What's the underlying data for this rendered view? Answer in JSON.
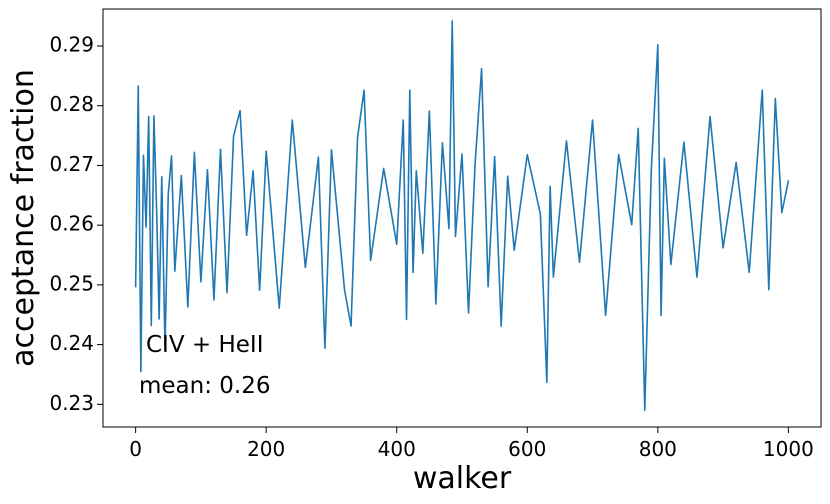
{
  "chart_data": {
    "type": "line",
    "xlabel": "walker",
    "ylabel": "acceptance fraction",
    "xlim": [
      -50,
      1050
    ],
    "ylim": [
      0.2262,
      0.2962
    ],
    "xticks": [
      0,
      200,
      400,
      600,
      800,
      1000
    ],
    "yticks": [
      0.23,
      0.24,
      0.25,
      0.26,
      0.27,
      0.28,
      0.29
    ],
    "xtick_labels": [
      "0",
      "200",
      "400",
      "600",
      "800",
      "1000"
    ],
    "ytick_labels": [
      "0.23",
      "0.24",
      "0.25",
      "0.26",
      "0.27",
      "0.28",
      "0.29"
    ],
    "grid": false,
    "series": [
      {
        "color": "#1f77b4",
        "x": [
          0,
          4,
          8,
          12,
          16,
          20,
          24,
          28,
          32,
          36,
          40,
          45,
          50,
          55,
          60,
          70,
          80,
          90,
          100,
          110,
          120,
          130,
          140,
          150,
          160,
          170,
          180,
          190,
          200,
          220,
          240,
          260,
          280,
          290,
          300,
          320,
          330,
          340,
          350,
          360,
          380,
          400,
          410,
          415,
          420,
          425,
          430,
          440,
          450,
          460,
          470,
          480,
          485,
          490,
          500,
          510,
          520,
          530,
          540,
          550,
          560,
          570,
          580,
          600,
          620,
          630,
          635,
          640,
          660,
          680,
          700,
          720,
          740,
          760,
          770,
          780,
          790,
          800,
          805,
          810,
          820,
          840,
          860,
          880,
          900,
          920,
          940,
          960,
          970,
          980,
          990,
          1000
        ],
        "y": [
          0.2497,
          0.2833,
          0.2355,
          0.2717,
          0.2597,
          0.2782,
          0.2432,
          0.2783,
          0.2632,
          0.2443,
          0.2681,
          0.2395,
          0.2653,
          0.2716,
          0.2523,
          0.2683,
          0.2463,
          0.2722,
          0.2505,
          0.2693,
          0.2475,
          0.2727,
          0.2487,
          0.2749,
          0.2792,
          0.2583,
          0.2691,
          0.2491,
          0.2724,
          0.2461,
          0.2776,
          0.2529,
          0.2714,
          0.2394,
          0.2726,
          0.2492,
          0.2431,
          0.2747,
          0.2826,
          0.2541,
          0.2695,
          0.2568,
          0.2776,
          0.2442,
          0.2826,
          0.2521,
          0.2691,
          0.2553,
          0.2791,
          0.2468,
          0.2738,
          0.2594,
          0.2942,
          0.2581,
          0.2719,
          0.2453,
          0.2702,
          0.2862,
          0.2497,
          0.2715,
          0.2431,
          0.2682,
          0.2558,
          0.2718,
          0.2619,
          0.2337,
          0.2665,
          0.2513,
          0.2741,
          0.2538,
          0.2776,
          0.2449,
          0.2718,
          0.2601,
          0.2762,
          0.229,
          0.2692,
          0.2902,
          0.2449,
          0.2712,
          0.2534,
          0.2739,
          0.2513,
          0.2782,
          0.2562,
          0.2705,
          0.2521,
          0.2826,
          0.2492,
          0.2812,
          0.2621,
          0.2674
        ]
      }
    ],
    "annotations": [
      "CIV + HeII",
      "mean: 0.26"
    ]
  }
}
